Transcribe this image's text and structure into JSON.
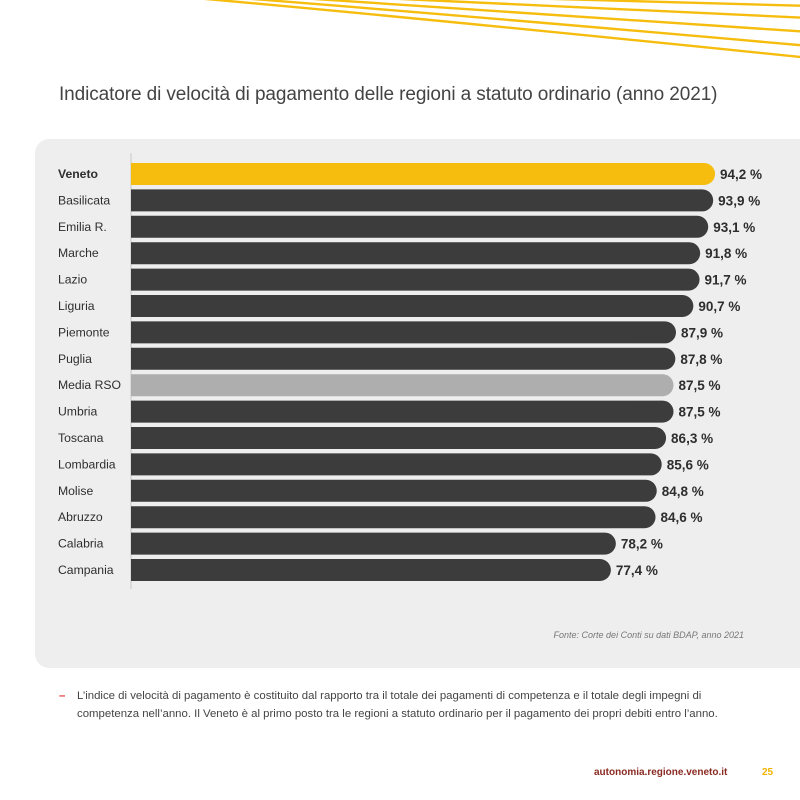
{
  "page": {
    "title": "Indicatore di velocità di pagamento delle regioni a statuto ordinario (anno 2021)",
    "source": "Fonte: Corte dei Conti su dati BDAP, anno 2021",
    "note": "L’indice di velocità di pagamento è costituito dal rapporto tra il totale dei pagamenti di competenza e il totale degli impegni di competenza nell’anno. Il Veneto è al primo posto tra le regioni a statuto ordinario per il pagamento dei propri debiti entro l’anno.",
    "note_marker": "–",
    "website": "autonomia.regione.veneto.it",
    "page_number": "25"
  },
  "colors": {
    "highlight": "#f6bd0e",
    "average": "#aeaeae",
    "default": "#3c3c3c",
    "accent_lines": "#f6bd0e"
  },
  "chart_data": {
    "type": "bar",
    "orientation": "horizontal",
    "title": "Indicatore di velocità di pagamento delle regioni a statuto ordinario (anno 2021)",
    "unit": "%",
    "categories": [
      "Veneto",
      "Basilicata",
      "Emilia R.",
      "Marche",
      "Lazio",
      "Liguria",
      "Piemonte",
      "Puglia",
      "Media RSO",
      "Umbria",
      "Toscana",
      "Lombardia",
      "Molise",
      "Abruzzo",
      "Calabria",
      "Campania"
    ],
    "values": [
      94.2,
      93.9,
      93.1,
      91.8,
      91.7,
      90.7,
      87.9,
      87.8,
      87.5,
      87.5,
      86.3,
      85.6,
      84.8,
      84.6,
      78.2,
      77.4
    ],
    "labels": [
      "94,2 %",
      "93,9 %",
      "93,1 %",
      "91,8 %",
      "91,7 %",
      "90,7 %",
      "87,9 %",
      "87,8 %",
      "87,5 %",
      "87,5 %",
      "86,3 %",
      "85,6 %",
      "84,8 %",
      "84,6 %",
      "78,2 %",
      "77,4 %"
    ],
    "highlight": "Veneto",
    "average": "Media RSO",
    "xlim": [
      0,
      100
    ]
  }
}
